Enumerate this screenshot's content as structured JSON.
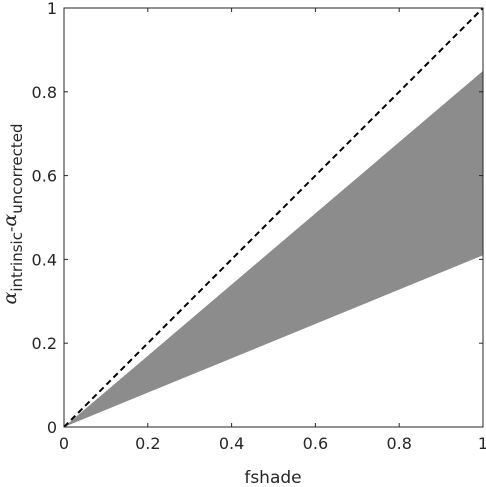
{
  "chart_data": {
    "type": "area",
    "xlabel": "fshade",
    "ylabel": {
      "symbol": "α",
      "sub1": "intrinsic",
      "sep": "-",
      "sub2": "uncorrected"
    },
    "xlim": [
      0,
      1
    ],
    "ylim": [
      0,
      1
    ],
    "xticks": [
      0,
      0.2,
      0.4,
      0.6,
      0.8,
      1
    ],
    "yticks": [
      0,
      0.2,
      0.4,
      0.6,
      0.8,
      1
    ],
    "xtick_labels": [
      "0",
      "0.2",
      "0.4",
      "0.6",
      "0.8",
      "1"
    ],
    "ytick_labels": [
      "0",
      "0.2",
      "0.4",
      "0.6",
      "0.8",
      "1"
    ],
    "grid": false,
    "legend": "none",
    "band": {
      "x": [
        0,
        1
      ],
      "lower": [
        0,
        0.41
      ],
      "upper": [
        0,
        0.85
      ],
      "color": "#8c8c8c"
    },
    "reference_line": {
      "x": [
        0,
        1
      ],
      "y": [
        0,
        1
      ],
      "style": "dashed",
      "color": "#000000"
    }
  }
}
